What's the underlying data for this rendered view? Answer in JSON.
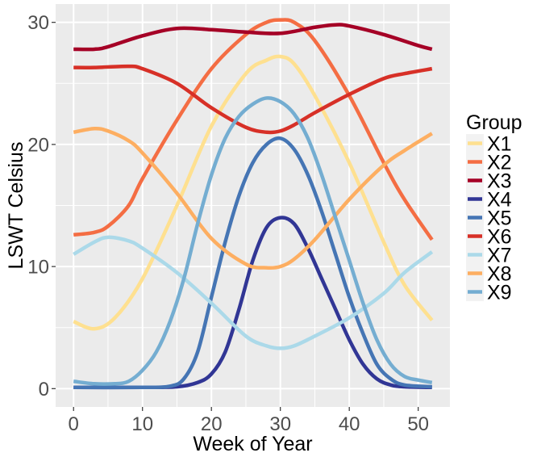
{
  "chart_data": {
    "type": "line",
    "title": "",
    "xlabel": "Week of Year",
    "ylabel": "LSWT Celsius",
    "xlim": [
      -2.6,
      54.6
    ],
    "ylim": [
      -1.5,
      31.5
    ],
    "xticks": [
      0,
      10,
      20,
      30,
      40,
      50
    ],
    "yticks": [
      0,
      10,
      20,
      30
    ],
    "xtick_labels": [
      "0",
      "10",
      "20",
      "30",
      "40",
      "50"
    ],
    "ytick_labels": [
      "0",
      "10",
      "20",
      "30"
    ],
    "grid": true,
    "background": "#ebebeb",
    "legend": {
      "title": "Group",
      "position": "right"
    },
    "series": [
      {
        "name": "X1",
        "color": "#fee090",
        "x": [
          0,
          3,
          6,
          10,
          15,
          20,
          25,
          28,
          30,
          32,
          35,
          40,
          45,
          48,
          52
        ],
        "y": [
          5.5,
          4.9,
          5.8,
          9.0,
          15.0,
          21.5,
          25.8,
          26.9,
          27.2,
          26.6,
          24.0,
          18.5,
          12.0,
          8.5,
          5.6
        ]
      },
      {
        "name": "X2",
        "color": "#f46d43",
        "x": [
          0,
          3,
          5,
          8,
          10,
          15,
          20,
          25,
          28,
          30,
          32,
          35,
          40,
          45,
          48,
          52
        ],
        "y": [
          12.6,
          12.8,
          13.3,
          15.0,
          17.2,
          22.0,
          26.2,
          29.0,
          30.0,
          30.2,
          30.0,
          28.5,
          24.0,
          18.5,
          15.5,
          12.2
        ]
      },
      {
        "name": "X3",
        "color": "#a50026",
        "x": [
          0,
          3,
          5,
          10,
          15,
          20,
          25,
          30,
          35,
          38,
          40,
          45,
          50,
          52
        ],
        "y": [
          27.8,
          27.8,
          28.0,
          28.9,
          29.5,
          29.4,
          29.2,
          29.1,
          29.6,
          29.8,
          29.7,
          29.0,
          28.1,
          27.8
        ]
      },
      {
        "name": "X4",
        "color": "#313695",
        "x": [
          0,
          10,
          15,
          18,
          20,
          22,
          24,
          26,
          28,
          30,
          32,
          34,
          36,
          38,
          40,
          42,
          44,
          46,
          48,
          52
        ],
        "y": [
          0.1,
          0.1,
          0.15,
          0.5,
          1.2,
          3.0,
          6.5,
          10.5,
          13.2,
          14.0,
          13.5,
          11.5,
          9.0,
          6.5,
          4.0,
          2.0,
          0.8,
          0.3,
          0.15,
          0.1
        ]
      },
      {
        "name": "X5",
        "color": "#4575b4",
        "x": [
          0,
          10,
          14,
          16,
          18,
          20,
          22,
          24,
          26,
          28,
          30,
          32,
          34,
          36,
          38,
          40,
          42,
          44,
          46,
          48,
          52
        ],
        "y": [
          0.1,
          0.1,
          0.2,
          0.8,
          3.0,
          7.5,
          12.0,
          15.8,
          18.5,
          20.0,
          20.5,
          19.6,
          17.5,
          14.5,
          11.0,
          7.5,
          4.5,
          2.0,
          0.8,
          0.3,
          0.15
        ]
      },
      {
        "name": "X6",
        "color": "#d73027",
        "x": [
          0,
          3,
          8,
          10,
          15,
          20,
          25,
          28,
          30,
          32,
          35,
          40,
          45,
          48,
          52
        ],
        "y": [
          26.3,
          26.3,
          26.4,
          26.2,
          25.0,
          23.0,
          21.4,
          21.0,
          21.1,
          21.6,
          22.6,
          24.1,
          25.4,
          25.8,
          26.2
        ]
      },
      {
        "name": "X7",
        "color": "#abd9e9",
        "x": [
          0,
          3,
          5,
          8,
          10,
          15,
          20,
          25,
          28,
          30,
          32,
          35,
          40,
          45,
          48,
          52
        ],
        "y": [
          11.0,
          12.0,
          12.4,
          12.1,
          11.5,
          9.5,
          7.0,
          4.3,
          3.5,
          3.3,
          3.5,
          4.3,
          5.8,
          7.8,
          9.5,
          11.2
        ]
      },
      {
        "name": "X8",
        "color": "#fdae61",
        "x": [
          0,
          3,
          5,
          8,
          10,
          15,
          20,
          25,
          28,
          30,
          32,
          35,
          40,
          45,
          48,
          52
        ],
        "y": [
          21.0,
          21.3,
          21.1,
          20.3,
          19.3,
          16.0,
          12.3,
          10.2,
          9.9,
          10.0,
          10.6,
          12.2,
          15.5,
          18.3,
          19.5,
          20.9
        ]
      },
      {
        "name": "X9",
        "color": "#74add1",
        "x": [
          0,
          3,
          6,
          8,
          10,
          12,
          14,
          16,
          18,
          20,
          22,
          24,
          26,
          28,
          30,
          32,
          34,
          36,
          38,
          40,
          42,
          44,
          46,
          48,
          50,
          52
        ],
        "y": [
          0.6,
          0.4,
          0.4,
          0.6,
          1.5,
          3.0,
          5.5,
          9.0,
          13.5,
          17.5,
          20.5,
          22.3,
          23.3,
          23.8,
          23.5,
          22.5,
          20.5,
          17.5,
          14.0,
          10.5,
          7.0,
          4.0,
          2.0,
          1.0,
          0.7,
          0.5
        ]
      }
    ]
  }
}
